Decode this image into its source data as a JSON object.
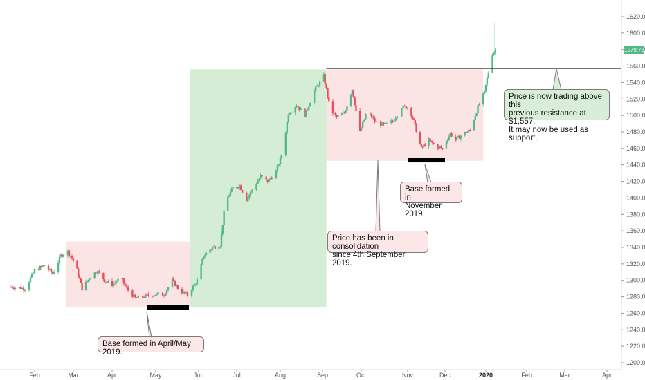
{
  "chart_data": {
    "type": "candlestick",
    "x_labels": [
      "Feb",
      "Mar",
      "Apr",
      "May",
      "Jun",
      "Jul",
      "Aug",
      "Sep",
      "Oct",
      "Nov",
      "Dec",
      "2020",
      "Feb",
      "Mar",
      "Apr"
    ],
    "y_ticks": [
      1200,
      1220,
      1240,
      1260,
      1280,
      1300,
      1320,
      1340,
      1360,
      1380,
      1400,
      1420,
      1440,
      1460,
      1480,
      1500,
      1520,
      1540,
      1560,
      1580,
      1600,
      1620
    ],
    "ylim": [
      1195,
      1635
    ],
    "last_price_label": "1579.73",
    "last_price": 1579.73,
    "resistance_level": 1557,
    "colors": {
      "up": "#53b987",
      "down": "#eb4d5c",
      "green_zone": "#d5ecd5",
      "red_zone": "#fbe4e4"
    },
    "zones": [
      {
        "type": "consolidation",
        "color": "red",
        "date_from": "2019-02-24",
        "date_to": "2019-05-26",
        "price_low": 1267,
        "price_high": 1347
      },
      {
        "type": "uptrend",
        "color": "green",
        "date_from": "2019-05-26",
        "date_to": "2019-09-04",
        "price_low": 1267,
        "price_high": 1556
      },
      {
        "type": "consolidation",
        "color": "red",
        "date_from": "2019-09-04",
        "date_to": "2019-12-30",
        "price_low": 1445,
        "price_high": 1556
      }
    ],
    "base_markers": [
      {
        "date_from": "2019-04-25",
        "date_to": "2019-05-25",
        "price": 1267
      },
      {
        "date_from": "2019-11-01",
        "date_to": "2019-12-01",
        "price": 1446
      }
    ],
    "price_path": [
      [
        "2019-01-15",
        1292
      ],
      [
        "2019-01-25",
        1290
      ],
      [
        "2019-02-01",
        1312
      ],
      [
        "2019-02-08",
        1318
      ],
      [
        "2019-02-14",
        1308
      ],
      [
        "2019-02-20",
        1330
      ],
      [
        "2019-02-25",
        1335
      ],
      [
        "2019-03-03",
        1318
      ],
      [
        "2019-03-08",
        1290
      ],
      [
        "2019-03-14",
        1303
      ],
      [
        "2019-03-20",
        1312
      ],
      [
        "2019-03-26",
        1300
      ],
      [
        "2019-04-01",
        1295
      ],
      [
        "2019-04-07",
        1303
      ],
      [
        "2019-04-11",
        1290
      ],
      [
        "2019-04-17",
        1278
      ],
      [
        "2019-04-22",
        1280
      ],
      [
        "2019-04-30",
        1283
      ],
      [
        "2019-05-07",
        1283
      ],
      [
        "2019-05-13",
        1300
      ],
      [
        "2019-05-18",
        1288
      ],
      [
        "2019-05-24",
        1282
      ],
      [
        "2019-05-31",
        1300
      ],
      [
        "2019-06-05",
        1330
      ],
      [
        "2019-06-12",
        1340
      ],
      [
        "2019-06-18",
        1343
      ],
      [
        "2019-06-22",
        1395
      ],
      [
        "2019-06-28",
        1412
      ],
      [
        "2019-07-03",
        1415
      ],
      [
        "2019-07-08",
        1398
      ],
      [
        "2019-07-12",
        1410
      ],
      [
        "2019-07-18",
        1426
      ],
      [
        "2019-07-23",
        1420
      ],
      [
        "2019-07-29",
        1432
      ],
      [
        "2019-08-03",
        1457
      ],
      [
        "2019-08-07",
        1503
      ],
      [
        "2019-08-13",
        1513
      ],
      [
        "2019-08-19",
        1500
      ],
      [
        "2019-08-26",
        1530
      ],
      [
        "2019-09-02",
        1548
      ],
      [
        "2019-09-07",
        1507
      ],
      [
        "2019-09-12",
        1498
      ],
      [
        "2019-09-18",
        1503
      ],
      [
        "2019-09-24",
        1532
      ],
      [
        "2019-09-30",
        1480
      ],
      [
        "2019-10-05",
        1506
      ],
      [
        "2019-10-10",
        1493
      ],
      [
        "2019-10-16",
        1488
      ],
      [
        "2019-10-22",
        1493
      ],
      [
        "2019-10-28",
        1510
      ],
      [
        "2019-11-02",
        1510
      ],
      [
        "2019-11-06",
        1493
      ],
      [
        "2019-11-12",
        1460
      ],
      [
        "2019-11-18",
        1470
      ],
      [
        "2019-11-24",
        1462
      ],
      [
        "2019-11-29",
        1460
      ],
      [
        "2019-12-05",
        1478
      ],
      [
        "2019-12-09",
        1470
      ],
      [
        "2019-12-14",
        1477
      ],
      [
        "2019-12-20",
        1482
      ],
      [
        "2019-12-26",
        1510
      ],
      [
        "2019-12-31",
        1528
      ],
      [
        "2020-01-03",
        1553
      ],
      [
        "2020-01-06",
        1575
      ],
      [
        "2020-01-08",
        1579.73
      ]
    ],
    "annotations": [
      {
        "text": "Base formed in April/May 2019."
      },
      {
        "text": "Price has been in consolidation\nsince 4th September 2019."
      },
      {
        "text": "Base formed in\nNovember 2019."
      },
      {
        "text": "Price is now trading above this\nprevious resistance at $1,557.\nIt may now be used as support."
      }
    ]
  }
}
